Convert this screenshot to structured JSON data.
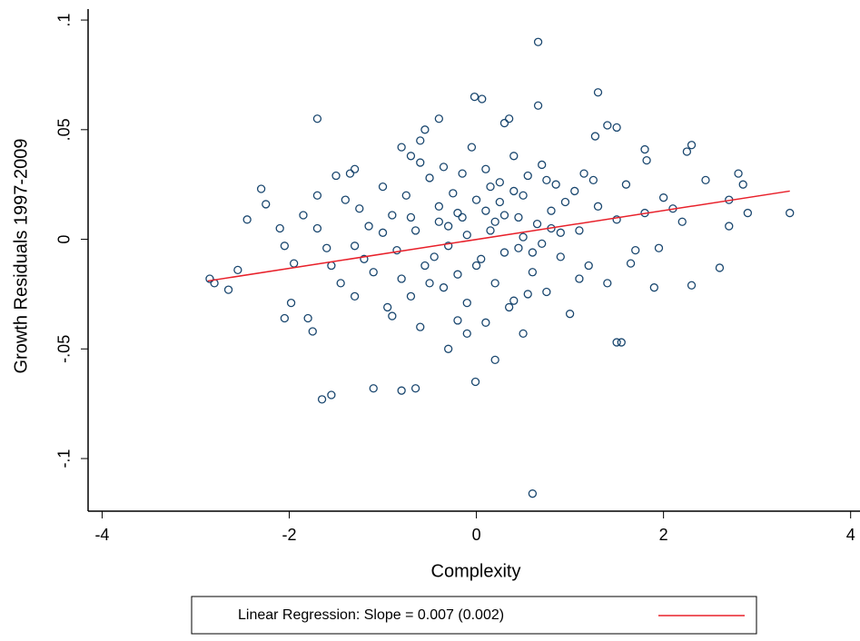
{
  "chart_data": {
    "type": "scatter",
    "x_label": "Complexity",
    "y_label": "Growth Residuals 1997-2009",
    "color": "#1a476f",
    "xlim": [
      -4.15,
      4.1
    ],
    "ylim": [
      -0.124,
      0.105
    ],
    "xticks": [
      -4,
      -2,
      0,
      2,
      4
    ],
    "yticks": [
      {
        "value": 0.1,
        "label": ".1"
      },
      {
        "value": 0.05,
        "label": ".05"
      },
      0,
      {
        "value": -0.05,
        "label": "-.05"
      },
      {
        "value": -0.1,
        "label": "-.1"
      }
    ],
    "grid": false,
    "x": [
      0.66,
      0.6,
      -0.02,
      0.06,
      1.3,
      -1.7,
      -0.4,
      0.66,
      -2.3,
      -2.45,
      -2.85,
      -2.8,
      -2.65,
      -2.55,
      -2.25,
      -2.1,
      -2.05,
      -1.95,
      -2.05,
      -1.98,
      -1.75,
      -1.8,
      -1.65,
      -1.55,
      -1.1,
      -0.8,
      -0.65,
      -0.01,
      -0.1,
      0.2,
      -0.3,
      0.5,
      1.5,
      1.55,
      2.3,
      2.6,
      2.9,
      3.35,
      2.85,
      2.8,
      2.7,
      2.7,
      2.3,
      2.25,
      2.45,
      1.8,
      1.82,
      1.5,
      1.4,
      1.27,
      0.3,
      0.35,
      -0.8,
      -0.7,
      -0.55,
      -0.6,
      -1.3,
      -1.35,
      -1.5,
      -1.7,
      -1.7,
      -1.6,
      -1.55,
      -1.45,
      -1.4,
      -1.3,
      -1.25,
      -1.2,
      -1.15,
      -1.1,
      -1.0,
      -0.95,
      -0.9,
      -0.85,
      -0.8,
      -0.75,
      -0.7,
      -0.65,
      -0.6,
      -0.55,
      -0.5,
      -0.45,
      -0.4,
      -0.35,
      -0.3,
      -0.25,
      -0.2,
      -0.15,
      -0.1,
      -0.05,
      0,
      0.05,
      0.1,
      0.15,
      0.2,
      0.25,
      0.3,
      0.35,
      0.4,
      0.45,
      0.5,
      0.55,
      0.6,
      0.65,
      0.7,
      0.75,
      0.8,
      0.85,
      0.9,
      0.95,
      1.0,
      1.05,
      1.1,
      1.15,
      1.2,
      1.3,
      1.4,
      1.5,
      1.6,
      1.7,
      1.8,
      1.9,
      2.0,
      2.1,
      2.2,
      -0.2,
      -0.6,
      -0.9,
      0.1,
      0.4,
      -0.3,
      -0.1,
      0.0,
      0.2,
      0.3,
      0.5,
      0.7,
      0.8,
      -0.4,
      -0.2,
      0.1,
      0.25,
      0.45,
      0.6,
      0.9,
      1.1,
      -0.7,
      -0.5,
      -1.0,
      -1.3,
      0.15,
      0.4,
      0.55,
      0.75,
      -0.15,
      -0.35,
      1.25,
      1.65,
      1.95,
      -1.85
    ],
    "values": [
      0.09,
      -0.116,
      0.065,
      0.064,
      0.067,
      0.055,
      0.055,
      0.061,
      0.023,
      0.009,
      -0.018,
      -0.02,
      -0.023,
      -0.014,
      0.016,
      0.005,
      -0.003,
      -0.011,
      -0.036,
      -0.029,
      -0.042,
      -0.036,
      -0.073,
      -0.071,
      -0.068,
      -0.069,
      -0.068,
      -0.065,
      -0.043,
      -0.055,
      -0.05,
      -0.043,
      -0.047,
      -0.047,
      -0.021,
      -0.013,
      0.012,
      0.012,
      0.025,
      0.03,
      0.006,
      0.018,
      0.043,
      0.04,
      0.027,
      0.041,
      0.036,
      0.051,
      0.052,
      0.047,
      0.053,
      0.055,
      0.042,
      0.038,
      0.05,
      0.045,
      0.032,
      0.03,
      0.029,
      0.02,
      0.005,
      -0.004,
      -0.012,
      -0.02,
      0.018,
      -0.026,
      0.014,
      -0.009,
      0.006,
      -0.015,
      0.024,
      -0.031,
      0.011,
      -0.005,
      -0.018,
      0.02,
      -0.026,
      0.004,
      0.035,
      -0.012,
      0.028,
      -0.008,
      0.015,
      -0.022,
      0.006,
      0.021,
      -0.016,
      0.01,
      -0.029,
      0.042,
      0.018,
      -0.009,
      0.032,
      0.004,
      -0.02,
      0.026,
      0.011,
      -0.031,
      0.038,
      -0.004,
      0.02,
      0.029,
      -0.015,
      0.007,
      0.034,
      -0.024,
      0.013,
      0.025,
      -0.008,
      0.017,
      -0.034,
      0.022,
      0.004,
      0.03,
      -0.012,
      0.015,
      -0.02,
      0.009,
      0.025,
      -0.005,
      0.012,
      -0.022,
      0.019,
      0.014,
      0.008,
      -0.037,
      -0.04,
      -0.035,
      -0.038,
      -0.028,
      -0.003,
      0.002,
      -0.012,
      0.008,
      -0.006,
      0.001,
      -0.002,
      0.005,
      0.008,
      0.012,
      0.013,
      0.017,
      0.01,
      -0.006,
      0.003,
      -0.018,
      0.01,
      -0.02,
      0.003,
      -0.003,
      0.024,
      0.022,
      -0.025,
      0.027,
      0.03,
      0.033,
      0.027,
      -0.011,
      -0.004,
      0.011
    ],
    "regression": {
      "name": "Linear Regression: Slope = 0.007 (0.002)",
      "color": "#e8202a",
      "x": [
        -2.87,
        3.35
      ],
      "values": [
        -0.019,
        0.022
      ]
    }
  }
}
